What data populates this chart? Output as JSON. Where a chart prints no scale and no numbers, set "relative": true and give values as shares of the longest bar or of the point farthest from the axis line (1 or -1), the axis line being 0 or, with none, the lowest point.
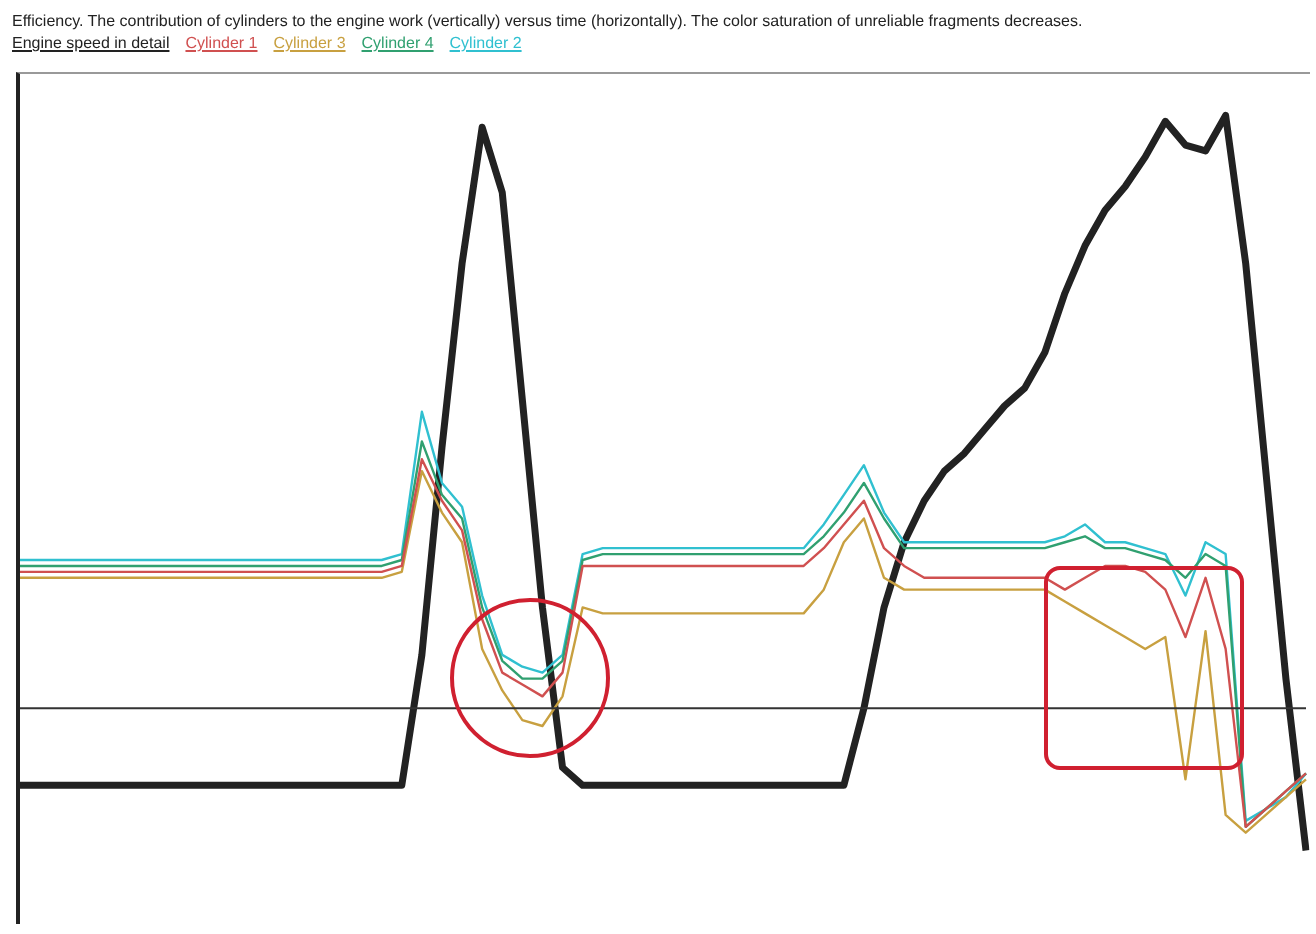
{
  "chart_data": {
    "type": "line",
    "relative": true,
    "title": "Efficiency. The contribution of cylinders to the engine work (vertically) versus time (horizontally). The color saturation of unreliable fragments decreases.",
    "legend": "top left",
    "marker": "none",
    "line_style": "solid",
    "categories": [
      null,
      null,
      null,
      null,
      null,
      null,
      null,
      null,
      null,
      null,
      null,
      null,
      null,
      null,
      null,
      null,
      null,
      null,
      null,
      null,
      null,
      null,
      null,
      null,
      null,
      null,
      null,
      null,
      null,
      null,
      null,
      null,
      null,
      null,
      null,
      null,
      null,
      null,
      null,
      null,
      null,
      null,
      null,
      null,
      null,
      null,
      null,
      null,
      null,
      null,
      null,
      null,
      null,
      null,
      null,
      null,
      null,
      null,
      null,
      null,
      null,
      null,
      null,
      null,
      null
    ],
    "series": [
      {
        "name": "Engine speed in detail",
        "color": "#222222",
        "values": [
          -0.13,
          -0.13,
          -0.13,
          -0.13,
          -0.13,
          -0.13,
          -0.13,
          -0.13,
          -0.13,
          -0.13,
          -0.13,
          -0.13,
          -0.13,
          -0.13,
          -0.13,
          -0.13,
          -0.13,
          -0.13,
          -0.13,
          -0.13,
          0.09,
          0.44,
          0.75,
          0.98,
          0.87,
          0.52,
          0.17,
          -0.1,
          -0.13,
          -0.13,
          -0.13,
          -0.13,
          -0.13,
          -0.13,
          -0.13,
          -0.13,
          -0.13,
          -0.13,
          -0.13,
          -0.13,
          -0.13,
          -0.13,
          0.0,
          0.17,
          0.28,
          0.35,
          0.4,
          0.43,
          0.47,
          0.51,
          0.54,
          0.6,
          0.7,
          0.78,
          0.84,
          0.88,
          0.93,
          0.99,
          0.95,
          0.94,
          1,
          0.75,
          0.4,
          0.05,
          -0.24
        ]
      },
      {
        "name": "Cylinder 1",
        "color": "#d05050",
        "values": [
          0.23,
          0.23,
          0.23,
          0.23,
          0.23,
          0.23,
          0.23,
          0.23,
          0.23,
          0.23,
          0.23,
          0.23,
          0.23,
          0.23,
          0.23,
          0.23,
          0.23,
          0.23,
          0.23,
          0.24,
          0.42,
          0.35,
          0.3,
          0.15,
          0.06,
          0.04,
          0.02,
          0.06,
          0.24,
          0.24,
          0.24,
          0.24,
          0.24,
          0.24,
          0.24,
          0.24,
          0.24,
          0.24,
          0.24,
          0.24,
          0.27,
          0.31,
          0.35,
          0.27,
          0.24,
          0.22,
          0.22,
          0.22,
          0.22,
          0.22,
          0.22,
          0.22,
          0.2,
          0.22,
          0.24,
          0.24,
          0.23,
          0.2,
          0.12,
          0.22,
          0.1,
          -0.2,
          -0.17,
          -0.14,
          -0.11
        ]
      },
      {
        "name": "Cylinder 3",
        "color": "#c8a040",
        "values": [
          0.22,
          0.22,
          0.22,
          0.22,
          0.22,
          0.22,
          0.22,
          0.22,
          0.22,
          0.22,
          0.22,
          0.22,
          0.22,
          0.22,
          0.22,
          0.22,
          0.22,
          0.22,
          0.22,
          0.23,
          0.4,
          0.33,
          0.28,
          0.1,
          0.03,
          -0.02,
          -0.03,
          0.02,
          0.17,
          0.16,
          0.16,
          0.16,
          0.16,
          0.16,
          0.16,
          0.16,
          0.16,
          0.16,
          0.16,
          0.16,
          0.2,
          0.28,
          0.32,
          0.22,
          0.2,
          0.2,
          0.2,
          0.2,
          0.2,
          0.2,
          0.2,
          0.2,
          0.18,
          0.16,
          0.14,
          0.12,
          0.1,
          0.12,
          -0.12,
          0.13,
          -0.18,
          -0.21,
          -0.18,
          -0.15,
          -0.12
        ]
      },
      {
        "name": "Cylinder 4",
        "color": "#30a070",
        "values": [
          0.24,
          0.24,
          0.24,
          0.24,
          0.24,
          0.24,
          0.24,
          0.24,
          0.24,
          0.24,
          0.24,
          0.24,
          0.24,
          0.24,
          0.24,
          0.24,
          0.24,
          0.24,
          0.24,
          0.25,
          0.45,
          0.36,
          0.32,
          0.17,
          0.08,
          0.05,
          0.05,
          0.08,
          0.25,
          0.26,
          0.26,
          0.26,
          0.26,
          0.26,
          0.26,
          0.26,
          0.26,
          0.26,
          0.26,
          0.26,
          0.29,
          0.33,
          0.38,
          0.32,
          0.27,
          0.27,
          0.27,
          0.27,
          0.27,
          0.27,
          0.27,
          0.27,
          0.28,
          0.29,
          0.27,
          0.27,
          0.26,
          0.25,
          0.22,
          0.26,
          0.24,
          -0.2,
          -0.17,
          -0.14,
          -0.11
        ]
      },
      {
        "name": "Cylinder 2",
        "color": "#30c0d0",
        "values": [
          0.25,
          0.25,
          0.25,
          0.25,
          0.25,
          0.25,
          0.25,
          0.25,
          0.25,
          0.25,
          0.25,
          0.25,
          0.25,
          0.25,
          0.25,
          0.25,
          0.25,
          0.25,
          0.25,
          0.26,
          0.5,
          0.38,
          0.34,
          0.19,
          0.09,
          0.07,
          0.06,
          0.09,
          0.26,
          0.27,
          0.27,
          0.27,
          0.27,
          0.27,
          0.27,
          0.27,
          0.27,
          0.27,
          0.27,
          0.27,
          0.31,
          0.36,
          0.41,
          0.33,
          0.28,
          0.28,
          0.28,
          0.28,
          0.28,
          0.28,
          0.28,
          0.28,
          0.29,
          0.31,
          0.28,
          0.28,
          0.27,
          0.26,
          0.19,
          0.28,
          0.26,
          -0.19,
          -0.17,
          -0.15,
          -0.11
        ]
      }
    ]
  }
}
